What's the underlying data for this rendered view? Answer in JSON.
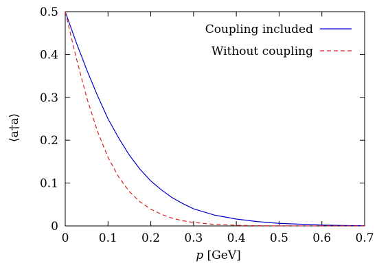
{
  "chart_data": {
    "type": "line",
    "xlabel": "p [GeV]",
    "ylabel": "⟨a†a⟩",
    "xlim": [
      0,
      0.7
    ],
    "ylim": [
      0,
      0.5
    ],
    "x_ticks": [
      "0",
      "0.1",
      "0.2",
      "0.3",
      "0.4",
      "0.5",
      "0.6",
      "0.7"
    ],
    "y_ticks": [
      "0",
      "0.1",
      "0.2",
      "0.3",
      "0.4",
      "0.5"
    ],
    "grid": false,
    "legend_position": "top-right",
    "series": [
      {
        "name": "Coupling included",
        "color": "#0000cc",
        "dash": "solid",
        "x": [
          0,
          0.025,
          0.05,
          0.075,
          0.1,
          0.125,
          0.15,
          0.175,
          0.2,
          0.225,
          0.25,
          0.275,
          0.3,
          0.35,
          0.4,
          0.45,
          0.5,
          0.55,
          0.6,
          0.65,
          0.7
        ],
        "y": [
          0.5,
          0.43,
          0.365,
          0.305,
          0.25,
          0.205,
          0.165,
          0.132,
          0.105,
          0.084,
          0.066,
          0.052,
          0.04,
          0.025,
          0.016,
          0.01,
          0.006,
          0.004,
          0.002,
          0.001,
          0.0005
        ]
      },
      {
        "name": "Without coupling",
        "color": "#dd2222",
        "dash": "dashed",
        "x": [
          0,
          0.025,
          0.05,
          0.075,
          0.1,
          0.125,
          0.15,
          0.175,
          0.2,
          0.225,
          0.25,
          0.275,
          0.3,
          0.35,
          0.4,
          0.45,
          0.5,
          0.55,
          0.6,
          0.65,
          0.7
        ],
        "y": [
          0.5,
          0.395,
          0.3,
          0.222,
          0.16,
          0.114,
          0.08,
          0.056,
          0.039,
          0.027,
          0.018,
          0.012,
          0.008,
          0.0035,
          0.0015,
          0.0006,
          0.0002,
          0.0001,
          5e-05,
          2e-05,
          1e-05
        ]
      }
    ]
  }
}
